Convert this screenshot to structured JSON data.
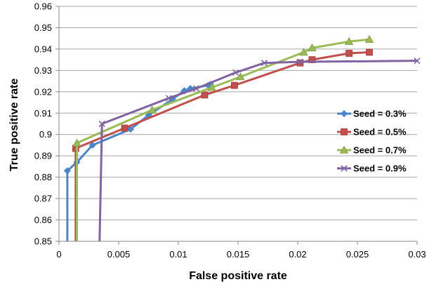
{
  "chart_data": {
    "type": "line",
    "title": "",
    "xlabel": "False positive rate",
    "ylabel": "True positive rate",
    "xlim": [
      0,
      0.03
    ],
    "ylim": [
      0.85,
      0.96
    ],
    "x_ticks": [
      "0",
      "0.005",
      "0.01",
      "0.015",
      "0.02",
      "0.025",
      "0.03"
    ],
    "y_ticks": [
      "0.85",
      "0.86",
      "0.87",
      "0.88",
      "0.89",
      "0.9",
      "0.91",
      "0.92",
      "0.93",
      "0.94",
      "0.95",
      "0.96"
    ],
    "grid": "horizontal",
    "legend_position": "right",
    "series": [
      {
        "name": "Seed = 0.3%",
        "color": "#4a86c8",
        "marker": "diamond",
        "points": [
          [
            0.0007,
            0.85
          ],
          [
            0.0007,
            0.883
          ],
          [
            0.0015,
            0.887
          ],
          [
            0.0028,
            0.895
          ],
          [
            0.006,
            0.9025
          ],
          [
            0.0075,
            0.909
          ],
          [
            0.0095,
            0.9165
          ],
          [
            0.0105,
            0.9205
          ],
          [
            0.011,
            0.9215
          ],
          [
            0.0125,
            0.923
          ],
          [
            0.0127,
            0.9235
          ]
        ]
      },
      {
        "name": "Seed = 0.5%",
        "color": "#c0504d",
        "marker": "square",
        "points": [
          [
            0.0014,
            0.85
          ],
          [
            0.0014,
            0.8935
          ],
          [
            0.0055,
            0.903
          ],
          [
            0.0122,
            0.9185
          ],
          [
            0.0147,
            0.923
          ],
          [
            0.0202,
            0.9335
          ],
          [
            0.0212,
            0.935
          ],
          [
            0.0243,
            0.938
          ],
          [
            0.026,
            0.9385
          ]
        ]
      },
      {
        "name": "Seed = 0.7%",
        "color": "#9bbb59",
        "marker": "triangle",
        "points": [
          [
            0.0015,
            0.85
          ],
          [
            0.0015,
            0.896
          ],
          [
            0.0078,
            0.9115
          ],
          [
            0.0128,
            0.922
          ],
          [
            0.0152,
            0.927
          ],
          [
            0.0205,
            0.9385
          ],
          [
            0.0212,
            0.9405
          ],
          [
            0.0243,
            0.9435
          ],
          [
            0.026,
            0.9445
          ]
        ]
      },
      {
        "name": "Seed = 0.9%",
        "color": "#8064a2",
        "marker": "x",
        "points": [
          [
            0.0034,
            0.85
          ],
          [
            0.0036,
            0.905
          ],
          [
            0.0092,
            0.917
          ],
          [
            0.0115,
            0.9215
          ],
          [
            0.0148,
            0.929
          ],
          [
            0.0172,
            0.9335
          ],
          [
            0.0202,
            0.934
          ],
          [
            0.03,
            0.9345
          ]
        ]
      }
    ]
  }
}
